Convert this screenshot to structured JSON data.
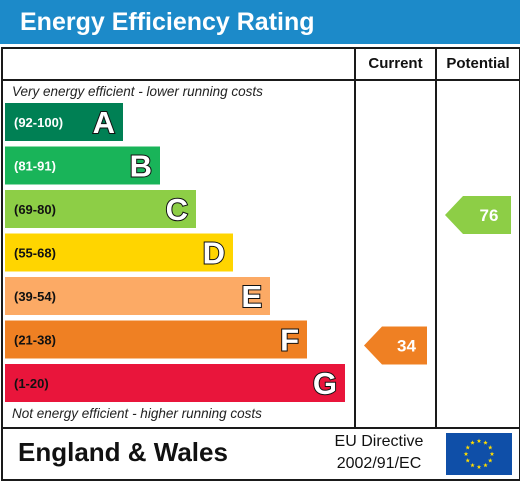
{
  "header": {
    "title": "Energy Efficiency Rating"
  },
  "columns": {
    "current": "Current",
    "potential": "Potential"
  },
  "notes": {
    "top": "Very energy efficient - lower running costs",
    "bottom": "Not energy efficient - higher running costs"
  },
  "chart_data": {
    "type": "bar",
    "bands": [
      {
        "range": "(92-100)",
        "letter": "A",
        "color": "#008054"
      },
      {
        "range": "(81-91)",
        "letter": "B",
        "color": "#19b459"
      },
      {
        "range": "(69-80)",
        "letter": "C",
        "color": "#8dce46"
      },
      {
        "range": "(55-68)",
        "letter": "D",
        "color": "#ffd500"
      },
      {
        "range": "(39-54)",
        "letter": "E",
        "color": "#fcaa65"
      },
      {
        "range": "(21-38)",
        "letter": "F",
        "color": "#ef8023"
      },
      {
        "range": "(1-20)",
        "letter": "G",
        "color": "#e9153b"
      }
    ],
    "current": {
      "value": 34,
      "band": "F",
      "color": "#ef8023"
    },
    "potential": {
      "value": 76,
      "band": "C",
      "color": "#8dce46"
    }
  },
  "footer": {
    "region": "England & Wales",
    "directive_line1": "EU Directive",
    "directive_line2": "2002/91/EC"
  },
  "icons": {
    "flag": "eu-flag-icon"
  }
}
